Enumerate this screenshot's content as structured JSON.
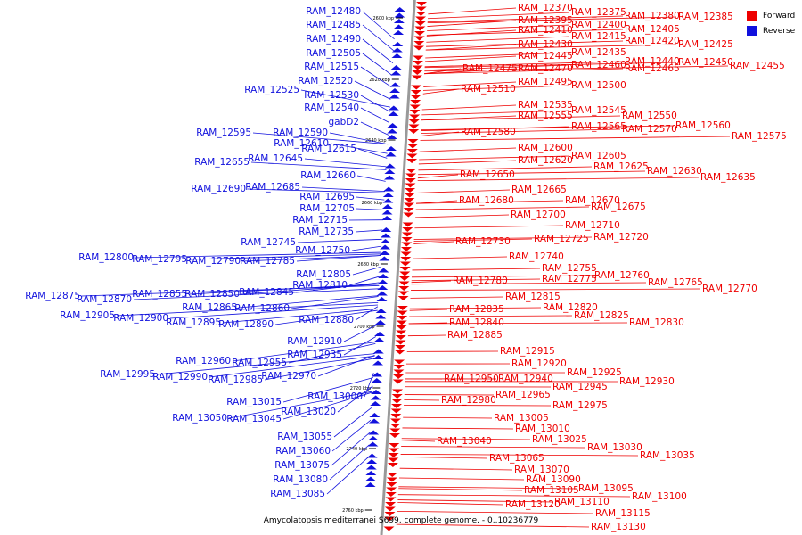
{
  "caption": "Amycolatopsis mediterranei S699, complete genome. - 0..10236779",
  "legend": [
    {
      "label": "Forward",
      "color": "#ee0000"
    },
    {
      "label": "Reverse",
      "color": "#1111dd"
    }
  ],
  "colors": {
    "forward": "#ee0000",
    "reverse": "#1111dd",
    "axis": "#999999"
  },
  "ticks": [
    "2600 kbp",
    "2620 kbp",
    "2640 kbp",
    "2660 kbp",
    "2680 kbp",
    "2700 kbp",
    "2720 kbp",
    "2740 kbp",
    "2760 kbp"
  ],
  "reverse_genes": [
    "RAM_12480",
    "RAM_12485",
    "RAM_12490",
    "RAM_12505",
    "RAM_12515",
    "RAM_12520",
    "RAM_12525",
    "RAM_12530",
    "RAM_12540",
    "gabD2",
    "RAM_12595",
    "RAM_12590",
    "RAM_12610",
    "RAM_12615",
    "RAM_12655",
    "RAM_12645",
    "RAM_12660",
    "RAM_12690",
    "RAM_12685",
    "RAM_12695",
    "RAM_12705",
    "RAM_12715",
    "RAM_12735",
    "RAM_12745",
    "RAM_12750",
    "RAM_12800",
    "RAM_12795",
    "RAM_12790",
    "RAM_12785",
    "RAM_12805",
    "RAM_12810",
    "RAM_12875",
    "RAM_12870",
    "RAM_12855",
    "RAM_12850",
    "RAM_12845",
    "RAM_12865",
    "RAM_12860",
    "RAM_12905",
    "RAM_12900",
    "RAM_12895",
    "RAM_12890",
    "RAM_12880",
    "RAM_12910",
    "RAM_12935",
    "RAM_12960",
    "RAM_12955",
    "RAM_12995",
    "RAM_12990",
    "RAM_12985",
    "RAM_12970",
    "RAM_13000",
    "RAM_13015",
    "RAM_13020",
    "RAM_13050",
    "RAM_13045",
    "RAM_13055",
    "RAM_13060",
    "RAM_13075",
    "RAM_13080",
    "RAM_13085"
  ],
  "forward_genes": [
    "RAM_12370",
    "RAM_12375",
    "RAM_12380",
    "RAM_12385",
    "RAM_12395",
    "RAM_12400",
    "RAM_12405",
    "RAM_12410",
    "RAM_12415",
    "RAM_12420",
    "RAM_12430",
    "RAM_12425",
    "RAM_12435",
    "RAM_12445",
    "RAM_12440",
    "RAM_12450",
    "RAM_12455",
    "RAM_12475",
    "RAM_12470",
    "RAM_12460",
    "RAM_12465",
    "RAM_12495",
    "RAM_12500",
    "RAM_12510",
    "RAM_12535",
    "RAM_12545",
    "RAM_12555",
    "RAM_12550",
    "RAM_12565",
    "RAM_12560",
    "RAM_12570",
    "RAM_12575",
    "RAM_12580",
    "RAM_12600",
    "RAM_12605",
    "RAM_12620",
    "RAM_12625",
    "RAM_12630",
    "RAM_12635",
    "RAM_12650",
    "RAM_12665",
    "RAM_12670",
    "RAM_12680",
    "RAM_12675",
    "RAM_12700",
    "RAM_12710",
    "RAM_12720",
    "RAM_12725",
    "RAM_12730",
    "RAM_12740",
    "RAM_12755",
    "RAM_12760",
    "RAM_12775",
    "RAM_12765",
    "RAM_12780",
    "RAM_12770",
    "RAM_12815",
    "RAM_12820",
    "RAM_12835",
    "RAM_12825",
    "RAM_12840",
    "RAM_12830",
    "RAM_12885",
    "RAM_12915",
    "RAM_12920",
    "RAM_12925",
    "RAM_12950",
    "RAM_12940",
    "RAM_12945",
    "RAM_12930",
    "RAM_12965",
    "RAM_12980",
    "RAM_12975",
    "RAM_13005",
    "RAM_13010",
    "RAM_13025",
    "RAM_13040",
    "RAM_13030",
    "RAM_13035",
    "RAM_13065",
    "RAM_13070",
    "RAM_13090",
    "RAM_13095",
    "RAM_13105",
    "RAM_13100",
    "RAM_13110",
    "RAM_13115",
    "RAM_13120",
    "RAM_13130"
  ]
}
